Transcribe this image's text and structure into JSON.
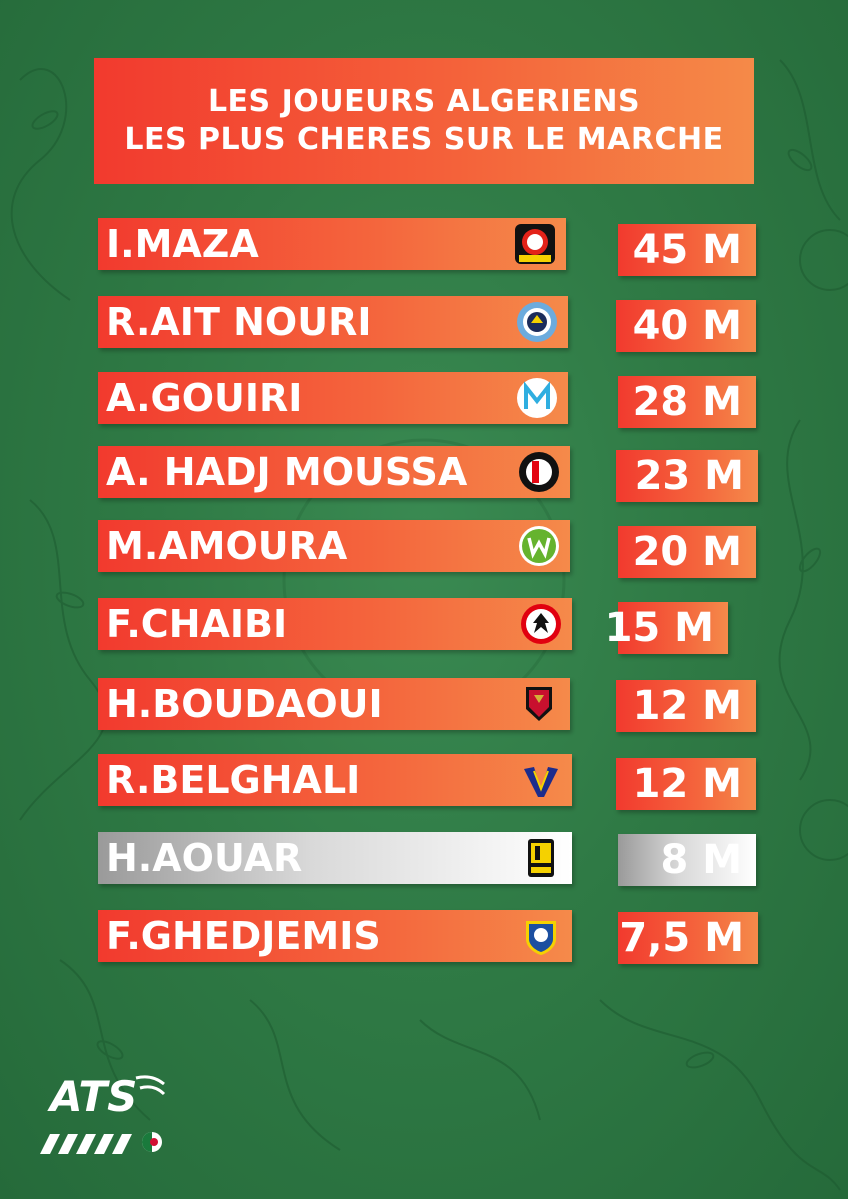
{
  "title": {
    "line1": "LES JOUEURS ALGERIENS",
    "line2": "LES PLUS CHERES SUR LE MARCHE"
  },
  "players": [
    {
      "name": "I.MAZA",
      "value": "45 M",
      "club_icon": "bayer-leverkusen-crest",
      "highlight": false
    },
    {
      "name": "R.AIT NOURI",
      "value": "40 M",
      "club_icon": "manchester-city-crest",
      "highlight": false
    },
    {
      "name": "A.GOUIRI",
      "value": "28 M",
      "club_icon": "olympique-marseille-crest",
      "highlight": false
    },
    {
      "name": "A. HADJ MOUSSA",
      "value": "23 M",
      "club_icon": "feyenoord-crest",
      "highlight": false
    },
    {
      "name": "M.AMOURA",
      "value": "20 M",
      "club_icon": "vfl-wolfsburg-crest",
      "highlight": false
    },
    {
      "name": "F.CHAIBI",
      "value": "15 M",
      "club_icon": "eintracht-frankfurt-crest",
      "highlight": false
    },
    {
      "name": "H.BOUDAOUI",
      "value": "12 M",
      "club_icon": "ogc-nice-crest",
      "highlight": false
    },
    {
      "name": "R.BELGHALI",
      "value": "12 M",
      "club_icon": "hellas-verona-crest",
      "highlight": false
    },
    {
      "name": "H.AOUAR",
      "value": "8 M",
      "club_icon": "ittihad-club-crest",
      "highlight": true
    },
    {
      "name": "F.GHEDJEMIS",
      "value": "7,5 M",
      "club_icon": "frosinone-calcio-crest",
      "highlight": false
    }
  ],
  "footer": {
    "brand": "ATS",
    "logo_icon": "ats-logo-with-algeria-flag"
  },
  "colors": {
    "background": "#2f7a45",
    "bar_start": "#f23a2e",
    "bar_end": "#f58a4a",
    "highlight_bar": "#d9d9d9"
  }
}
